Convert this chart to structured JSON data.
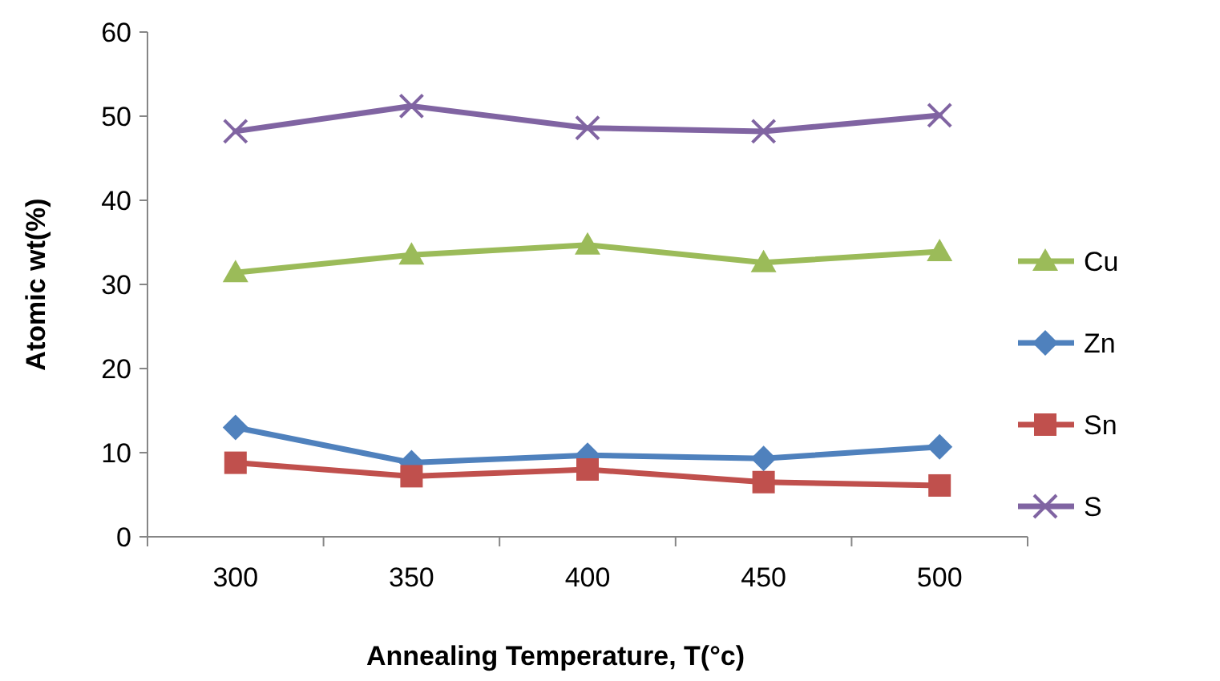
{
  "chart_data": {
    "type": "line",
    "xlabel": "Annealing Temperature, T(°c)",
    "ylabel": "Atomic wt(%)",
    "categories": [
      "300",
      "350",
      "400",
      "450",
      "500"
    ],
    "ylim": [
      0,
      60
    ],
    "yticks": [
      0,
      10,
      20,
      30,
      40,
      50,
      60
    ],
    "grid": false,
    "legend": "right",
    "line_style": "solid",
    "series": [
      {
        "name": "Cu",
        "color": "#9bbb59",
        "marker": "triangle",
        "values": [
          31.4,
          33.5,
          34.7,
          32.6,
          33.9
        ]
      },
      {
        "name": "Zn",
        "color": "#4f81bd",
        "marker": "diamond",
        "values": [
          13.0,
          8.8,
          9.7,
          9.3,
          10.7
        ]
      },
      {
        "name": "Sn",
        "color": "#c0504d",
        "marker": "square",
        "values": [
          8.8,
          7.2,
          8.0,
          6.5,
          6.1
        ]
      },
      {
        "name": "S",
        "color": "#8064a2",
        "marker": "cross",
        "values": [
          48.2,
          51.2,
          48.6,
          48.2,
          50.1
        ]
      }
    ]
  }
}
